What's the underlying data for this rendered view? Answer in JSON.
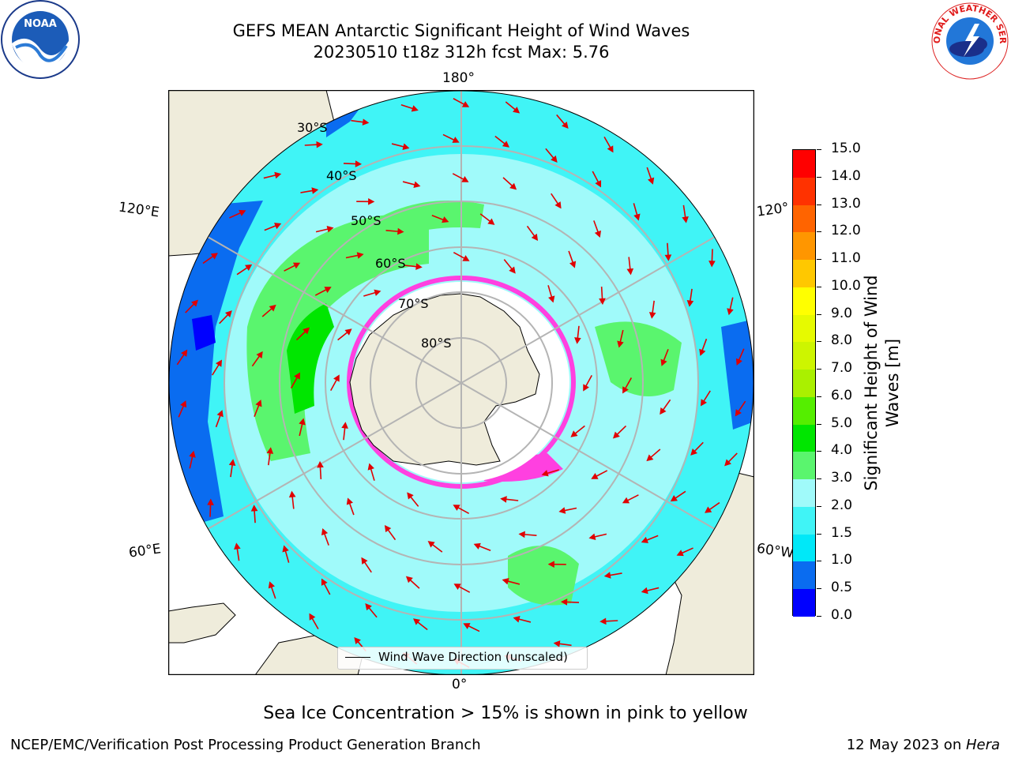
{
  "title": {
    "line1": "GEFS MEAN Antarctic Significant Height of Wind Waves",
    "line2": "20230510 t18z 312h fcst   Max: 5.76"
  },
  "logos": {
    "noaa": "NOAA",
    "nws": "NATIONAL WEATHER SERVICE"
  },
  "map": {
    "projection": "south-polar-stereographic",
    "lon_labels": {
      "top": "180°",
      "bottom": "0°",
      "left_upper": "120°E",
      "left_lower": "60°E",
      "right_upper": "120°",
      "right_lower": "60°W"
    },
    "lat_labels": [
      "30°S",
      "40°S",
      "50°S",
      "60°S",
      "70°S",
      "80°S"
    ],
    "land_color": "#efecdb",
    "sea_ice_note": "Sea Ice Concentration > 15% is shown in pink to yellow"
  },
  "colorbar": {
    "title": "Significant Height of Wind Waves [m]",
    "tick_labels": [
      "0.0",
      "0.5",
      "1.0",
      "1.5",
      "2.0",
      "3.0",
      "4.0",
      "5.0",
      "6.0",
      "7.0",
      "8.0",
      "9.0",
      "10.0",
      "11.0",
      "12.0",
      "13.0",
      "14.0",
      "15.0"
    ],
    "colors": [
      "#0000ff",
      "#0a6cf0",
      "#00e8f8",
      "#40f4f6",
      "#a0fafa",
      "#5af56e",
      "#00e600",
      "#55ee00",
      "#aaf000",
      "#cdf500",
      "#e6fa00",
      "#ffff00",
      "#ffc800",
      "#ff9600",
      "#ff6400",
      "#ff3200",
      "#ff0000"
    ]
  },
  "legend": {
    "label": "Wind Wave Direction (unscaled)"
  },
  "footer": {
    "left": "NCEP/EMC/Verification Post Processing Product Generation Branch",
    "right_date": "12 May 2023 on ",
    "right_host": "Hera"
  }
}
